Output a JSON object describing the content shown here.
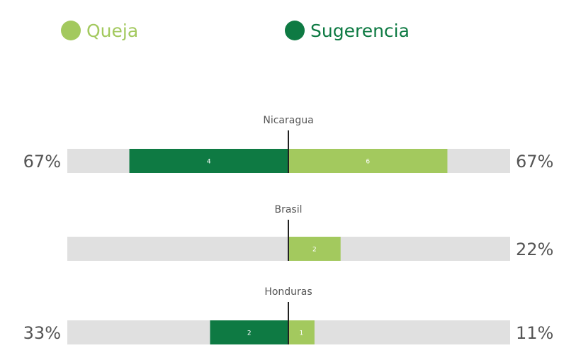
{
  "chart_data": {
    "type": "diverging-bar",
    "categories": [
      "Nicaragua",
      "Brasil",
      "Honduras"
    ],
    "xlim": [
      0,
      100
    ],
    "track_color": "#e0e0e0",
    "series": [
      {
        "name": "Sugerencia",
        "color": "#0e7a43",
        "side": "left",
        "values": [
          4,
          null,
          2
        ],
        "percent": [
          67,
          null,
          33
        ],
        "percent_labels": [
          "67%",
          null,
          "33%"
        ]
      },
      {
        "name": "Queja",
        "color": "#a3c95e",
        "side": "right",
        "values": [
          6,
          2,
          1
        ],
        "percent": [
          67,
          22,
          11
        ],
        "percent_labels": [
          "67%",
          "22%",
          "11%"
        ]
      }
    ]
  }
}
